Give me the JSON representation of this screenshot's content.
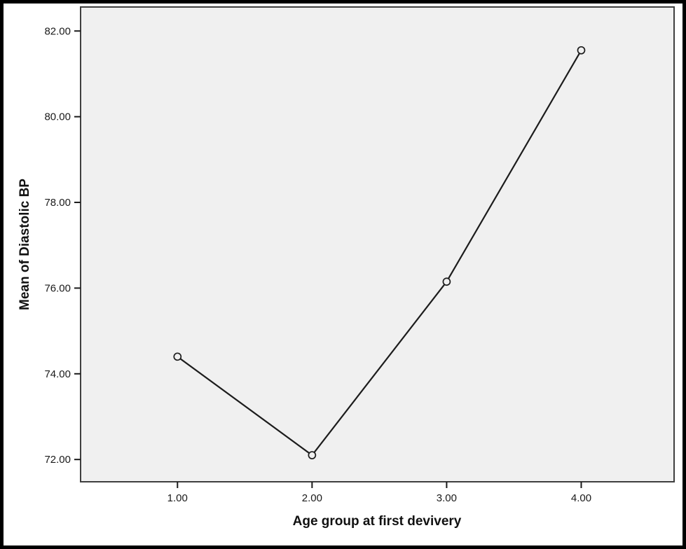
{
  "window": {
    "background": "#ffffff",
    "frame_border_color": "#000000"
  },
  "chart_data": {
    "type": "line",
    "title": "",
    "xlabel": "Age group at first devivery",
    "ylabel": "Mean of Diastolic BP",
    "x": [
      1.0,
      2.0,
      3.0,
      4.0
    ],
    "x_tick_labels": [
      "1.00",
      "2.00",
      "3.00",
      "4.00"
    ],
    "series": [
      {
        "name": "Mean of Diastolic BP",
        "values": [
          74.4,
          72.1,
          76.15,
          81.55
        ]
      }
    ],
    "y_ticks": [
      72,
      74,
      76,
      78,
      80,
      82
    ],
    "y_tick_labels": [
      "72.00",
      "74.00",
      "76.00",
      "78.00",
      "80.00",
      "82.00"
    ],
    "xlim": [
      0.28,
      4.69
    ],
    "ylim": [
      71.48,
      82.56
    ],
    "grid": false,
    "legend": false,
    "marker": "open-circle",
    "plot_bg_color": "#f0f0f0",
    "plot_border_color": "#3f3f3f",
    "line_color": "#1c1c1c",
    "tick_color": "#1a1a1a"
  }
}
